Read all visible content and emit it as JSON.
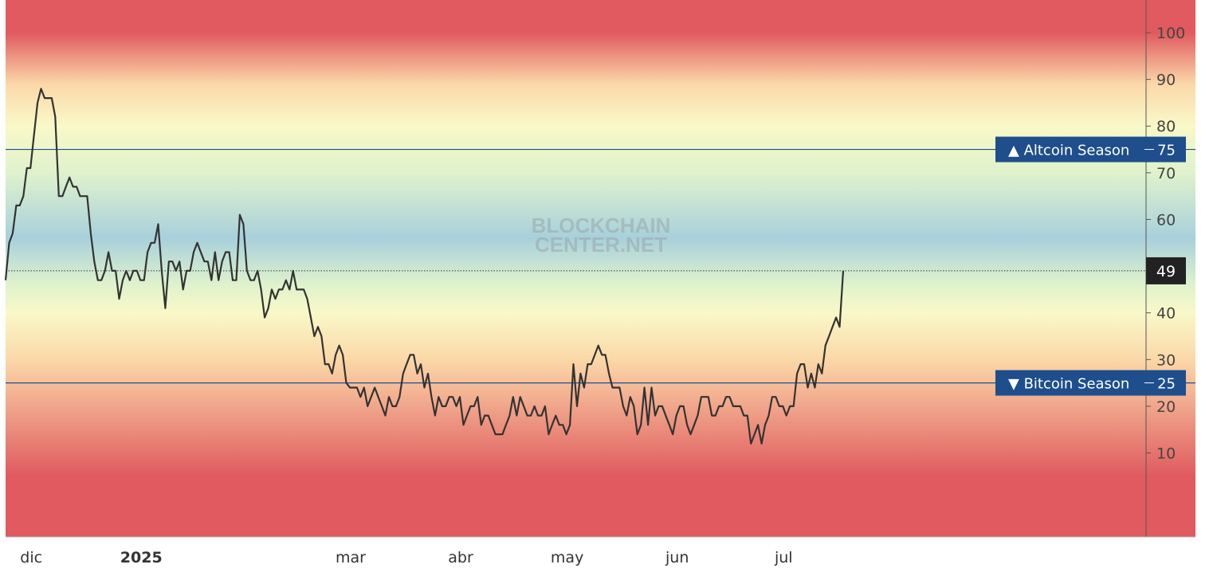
{
  "watermark": {
    "line1": "BLOCKCHAIN",
    "line2": "CENTER.NET"
  },
  "chart_data": {
    "type": "line",
    "title": "",
    "xlabel": "",
    "ylabel": "",
    "ylim": [
      -8,
      107
    ],
    "y_ticks": [
      10,
      20,
      30,
      40,
      60,
      70,
      80,
      90,
      100
    ],
    "grid": false,
    "x_tick_labels": [
      {
        "date": "2024-12-01",
        "label": "dic",
        "bold": false
      },
      {
        "date": "2025-01-01",
        "label": "2025",
        "bold": true
      },
      {
        "date": "2025-03-01",
        "label": "mar",
        "bold": false
      },
      {
        "date": "2025-04-01",
        "label": "abr",
        "bold": false
      },
      {
        "date": "2025-05-01",
        "label": "may",
        "bold": false
      },
      {
        "date": "2025-06-01",
        "label": "jun",
        "bold": false
      },
      {
        "date": "2025-07-01",
        "label": "jul",
        "bold": false
      }
    ],
    "thresholds": [
      {
        "name": "Altcoin Season",
        "value": 75,
        "label": "▲ Altcoin Season",
        "value_label": "75",
        "color": "#1f4e8c"
      },
      {
        "name": "Bitcoin Season",
        "value": 25,
        "label": "▼ Bitcoin Season",
        "value_label": "25",
        "color": "#1f4e8c"
      }
    ],
    "current": {
      "value": 49,
      "label": "49",
      "color": "#222222"
    },
    "line_color": "#333333",
    "background_gradient_colors": [
      "#e05a5f",
      "#fbd8a8",
      "#f9f8c8",
      "#dff2cc",
      "#a8d0dc"
    ],
    "series": [
      {
        "x": [
          "2024-11-24",
          "2024-11-25",
          "2024-11-26",
          "2024-11-27",
          "2024-11-28",
          "2024-11-29",
          "2024-11-30",
          "2024-12-01",
          "2024-12-02",
          "2024-12-03",
          "2024-12-04",
          "2024-12-05",
          "2024-12-06",
          "2024-12-07",
          "2024-12-08",
          "2024-12-09",
          "2024-12-10",
          "2024-12-11",
          "2024-12-12",
          "2024-12-13",
          "2024-12-14",
          "2024-12-15",
          "2024-12-16",
          "2024-12-17",
          "2024-12-18",
          "2024-12-19",
          "2024-12-20",
          "2024-12-21",
          "2024-12-22",
          "2024-12-23",
          "2024-12-24",
          "2024-12-25",
          "2024-12-26",
          "2024-12-27",
          "2024-12-28",
          "2024-12-29",
          "2024-12-30",
          "2024-12-31",
          "2025-01-01",
          "2025-01-02",
          "2025-01-03",
          "2025-01-04",
          "2025-01-05",
          "2025-01-06",
          "2025-01-07",
          "2025-01-08",
          "2025-01-09",
          "2025-01-10",
          "2025-01-11",
          "2025-01-12",
          "2025-01-13",
          "2025-01-14",
          "2025-01-15",
          "2025-01-16",
          "2025-01-17",
          "2025-01-18",
          "2025-01-19",
          "2025-01-20",
          "2025-01-21",
          "2025-01-22",
          "2025-01-23",
          "2025-01-24",
          "2025-01-25",
          "2025-01-26",
          "2025-01-27",
          "2025-01-28",
          "2025-01-29",
          "2025-01-30",
          "2025-01-31",
          "2025-02-01",
          "2025-02-02",
          "2025-02-03",
          "2025-02-04",
          "2025-02-05",
          "2025-02-06",
          "2025-02-07",
          "2025-02-08",
          "2025-02-09",
          "2025-02-10",
          "2025-02-11",
          "2025-02-12",
          "2025-02-13",
          "2025-02-14",
          "2025-02-15",
          "2025-02-16",
          "2025-02-17",
          "2025-02-18",
          "2025-02-19",
          "2025-02-20",
          "2025-02-21",
          "2025-02-22",
          "2025-02-23",
          "2025-02-24",
          "2025-02-25",
          "2025-02-26",
          "2025-02-27",
          "2025-02-28",
          "2025-03-01",
          "2025-03-02",
          "2025-03-03",
          "2025-03-04",
          "2025-03-05",
          "2025-03-06",
          "2025-03-07",
          "2025-03-08",
          "2025-03-09",
          "2025-03-10",
          "2025-03-11",
          "2025-03-12",
          "2025-03-13",
          "2025-03-14",
          "2025-03-15",
          "2025-03-16",
          "2025-03-17",
          "2025-03-18",
          "2025-03-19",
          "2025-03-20",
          "2025-03-21",
          "2025-03-22",
          "2025-03-23",
          "2025-03-24",
          "2025-03-25",
          "2025-03-26",
          "2025-03-27",
          "2025-03-28",
          "2025-03-29",
          "2025-03-30",
          "2025-03-31",
          "2025-04-01",
          "2025-04-02",
          "2025-04-03",
          "2025-04-04",
          "2025-04-05",
          "2025-04-06",
          "2025-04-07",
          "2025-04-08",
          "2025-04-09",
          "2025-04-10",
          "2025-04-11",
          "2025-04-12",
          "2025-04-13",
          "2025-04-14",
          "2025-04-15",
          "2025-04-16",
          "2025-04-17",
          "2025-04-18",
          "2025-04-19",
          "2025-04-20",
          "2025-04-21",
          "2025-04-22",
          "2025-04-23",
          "2025-04-24",
          "2025-04-25",
          "2025-04-26",
          "2025-04-27",
          "2025-04-28",
          "2025-04-29",
          "2025-04-30",
          "2025-05-01",
          "2025-05-02",
          "2025-05-03",
          "2025-05-04",
          "2025-05-05",
          "2025-05-06",
          "2025-05-07",
          "2025-05-08",
          "2025-05-09",
          "2025-05-10",
          "2025-05-11",
          "2025-05-12",
          "2025-05-13",
          "2025-05-14",
          "2025-05-15",
          "2025-05-16",
          "2025-05-17",
          "2025-05-18",
          "2025-05-19",
          "2025-05-20",
          "2025-05-21",
          "2025-05-22",
          "2025-05-23",
          "2025-05-24",
          "2025-05-25",
          "2025-05-26",
          "2025-05-27",
          "2025-05-28",
          "2025-05-29",
          "2025-05-30",
          "2025-05-31",
          "2025-06-01",
          "2025-06-02",
          "2025-06-03",
          "2025-06-04",
          "2025-06-05",
          "2025-06-06",
          "2025-06-07",
          "2025-06-08",
          "2025-06-09",
          "2025-06-10",
          "2025-06-11",
          "2025-06-12",
          "2025-06-13",
          "2025-06-14",
          "2025-06-15",
          "2025-06-16",
          "2025-06-17",
          "2025-06-18",
          "2025-06-19",
          "2025-06-20",
          "2025-06-21",
          "2025-06-22",
          "2025-06-23",
          "2025-06-24",
          "2025-06-25",
          "2025-06-26",
          "2025-06-27",
          "2025-06-28",
          "2025-06-29",
          "2025-06-30",
          "2025-07-01",
          "2025-07-02",
          "2025-07-03",
          "2025-07-04",
          "2025-07-05",
          "2025-07-06",
          "2025-07-07",
          "2025-07-08",
          "2025-07-09",
          "2025-07-10",
          "2025-07-11",
          "2025-07-12",
          "2025-07-13",
          "2025-07-14",
          "2025-07-15",
          "2025-07-16",
          "2025-07-17",
          "2025-07-18"
        ],
        "values": [
          47,
          55,
          57,
          63,
          63,
          65,
          71,
          71,
          78,
          85,
          88,
          86,
          86,
          86,
          82,
          65,
          65,
          67,
          69,
          67,
          67,
          65,
          65,
          65,
          57,
          51,
          47,
          47,
          49,
          53,
          49,
          49,
          43,
          47,
          49,
          47,
          49,
          49,
          47,
          47,
          53,
          55,
          55,
          59,
          49,
          41,
          51,
          51,
          49,
          51,
          45,
          49,
          49,
          53,
          55,
          53,
          51,
          51,
          47,
          53,
          47,
          51,
          53,
          53,
          47,
          47,
          61,
          59,
          49,
          47,
          47,
          49,
          45,
          39,
          41,
          45,
          43,
          45,
          45,
          47,
          45,
          49,
          45,
          45,
          45,
          43,
          39,
          35,
          37,
          35,
          29,
          29,
          27,
          31,
          33,
          31,
          25,
          24,
          24,
          24,
          22,
          24,
          20,
          22,
          24,
          22,
          20,
          18,
          22,
          20,
          20,
          22,
          27,
          29,
          31,
          31,
          27,
          29,
          24,
          27,
          22,
          18,
          22,
          20,
          20,
          22,
          22,
          20,
          22,
          16,
          18,
          20,
          20,
          22,
          16,
          18,
          18,
          16,
          14,
          14,
          14,
          16,
          18,
          22,
          18,
          22,
          20,
          18,
          18,
          20,
          18,
          18,
          20,
          14,
          16,
          18,
          16,
          16,
          14,
          16,
          29,
          20,
          27,
          24,
          29,
          29,
          31,
          33,
          31,
          31,
          27,
          24,
          24,
          24,
          20,
          18,
          22,
          20,
          14,
          16,
          24,
          16,
          24,
          18,
          20,
          20,
          18,
          16,
          14,
          18,
          20,
          20,
          16,
          14,
          16,
          18,
          22,
          22,
          22,
          18,
          18,
          20,
          20,
          22,
          22,
          20,
          20,
          20,
          18,
          18,
          12,
          14,
          16,
          12,
          16,
          18,
          22,
          22,
          20,
          20,
          18,
          20,
          20,
          27,
          29,
          29,
          24,
          27,
          24,
          29,
          27,
          33,
          35,
          37,
          39,
          37,
          49
        ]
      }
    ]
  }
}
